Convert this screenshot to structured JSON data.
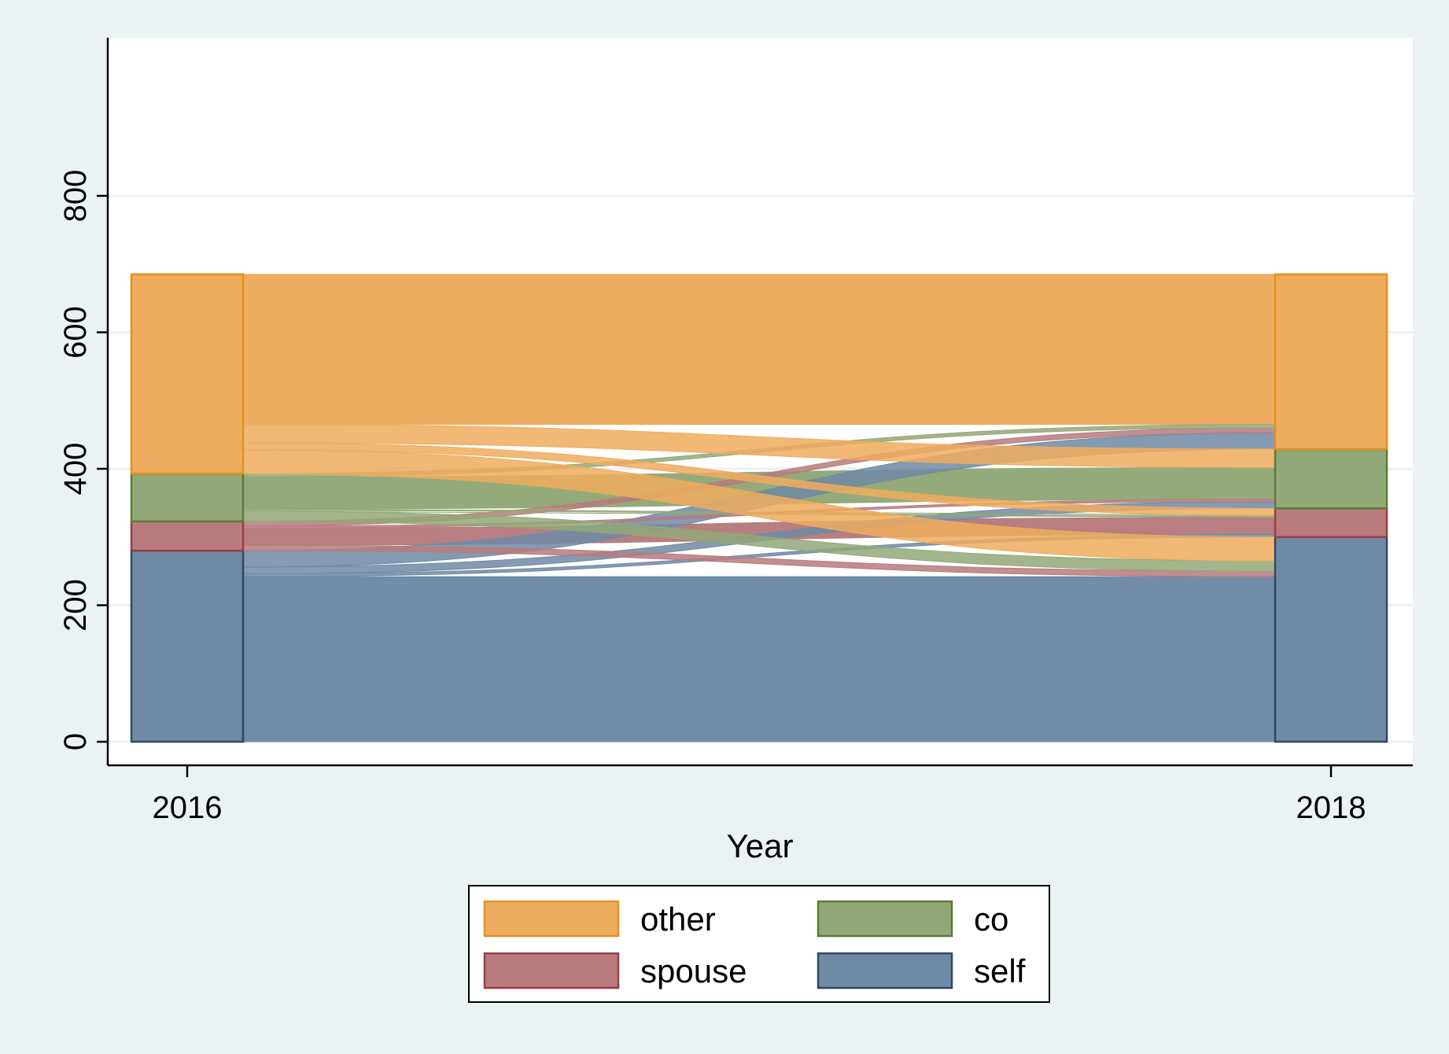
{
  "chart_data": {
    "type": "alluvial",
    "xlabel": "Year",
    "ylabel": "",
    "title": "",
    "ylim": [
      0,
      830
    ],
    "yticks": [
      0,
      200,
      400,
      600,
      800
    ],
    "x": [
      "2016",
      "2018"
    ],
    "grid": true,
    "legend_position": "bottom",
    "stack_order": [
      "self",
      "spouse",
      "co",
      "other"
    ],
    "categories": [
      {
        "name": "other",
        "color": "#eeac5e",
        "edge": "#e4901f"
      },
      {
        "name": "co",
        "color": "#93a877",
        "edge": "#5b7b3a"
      },
      {
        "name": "spouse",
        "color": "#b77b7e",
        "edge": "#9a3d48"
      },
      {
        "name": "self",
        "color": "#6f8aa5",
        "edge": "#2e4a66"
      }
    ],
    "totals": {
      "2016": {
        "self": 280,
        "spouse": 43,
        "co": 70,
        "other": 292
      },
      "2018": {
        "self": 300,
        "spouse": 42,
        "co": 87,
        "other": 256
      }
    },
    "flows": [
      {
        "from": "self",
        "to": "self",
        "value": 242
      },
      {
        "from": "self",
        "to": "spouse",
        "value": 4
      },
      {
        "from": "self",
        "to": "co",
        "value": 10
      },
      {
        "from": "self",
        "to": "other",
        "value": 24
      },
      {
        "from": "spouse",
        "to": "self",
        "value": 8
      },
      {
        "from": "spouse",
        "to": "spouse",
        "value": 25
      },
      {
        "from": "spouse",
        "to": "co",
        "value": 3
      },
      {
        "from": "spouse",
        "to": "other",
        "value": 7
      },
      {
        "from": "co",
        "to": "self",
        "value": 15
      },
      {
        "from": "co",
        "to": "spouse",
        "value": 3
      },
      {
        "from": "co",
        "to": "co",
        "value": 47
      },
      {
        "from": "co",
        "to": "other",
        "value": 5
      },
      {
        "from": "other",
        "to": "self",
        "value": 35
      },
      {
        "from": "other",
        "to": "spouse",
        "value": 10
      },
      {
        "from": "other",
        "to": "co",
        "value": 27
      },
      {
        "from": "other",
        "to": "other",
        "value": 220
      }
    ],
    "legend": [
      {
        "name": "other"
      },
      {
        "name": "co"
      },
      {
        "name": "spouse"
      },
      {
        "name": "self"
      }
    ]
  }
}
